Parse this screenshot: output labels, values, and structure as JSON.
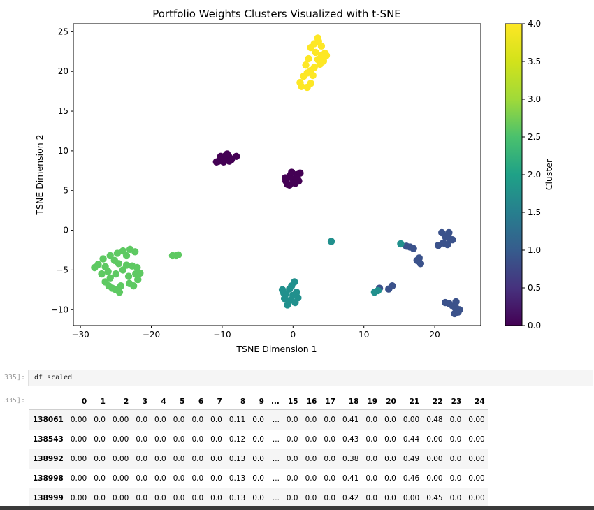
{
  "chart_data": {
    "type": "scatter",
    "title": "Portfolio Weights Clusters Visualized with t-SNE",
    "xlabel": "TSNE Dimension 1",
    "ylabel": "TSNE Dimension 2",
    "xlim": [
      -31,
      26.5
    ],
    "ylim": [
      -12,
      26
    ],
    "xticks": [
      -30,
      -20,
      -10,
      0,
      10,
      20
    ],
    "yticks": [
      -10,
      -5,
      0,
      5,
      10,
      15,
      20,
      25
    ],
    "grid": false,
    "colorbar": {
      "label": "Cluster",
      "range": [
        0,
        4
      ],
      "ticks": [
        "0.0",
        "0.5",
        "1.0",
        "1.5",
        "2.0",
        "2.5",
        "3.0",
        "3.5",
        "4.0"
      ],
      "colormap": "viridis"
    },
    "series": [
      {
        "cluster": 0,
        "color": "#440154",
        "points": [
          [
            -10.5,
            8.7
          ],
          [
            -10,
            9
          ],
          [
            -9.5,
            9.4
          ],
          [
            -9.8,
            8.6
          ],
          [
            -9,
            9.2
          ],
          [
            -8.7,
            8.9
          ],
          [
            -9.3,
            9.6
          ],
          [
            -10.2,
            9.3
          ],
          [
            -8,
            9.3
          ],
          [
            -10.8,
            8.6
          ],
          [
            -9.6,
            8.9
          ],
          [
            -9,
            8.7
          ],
          [
            -1,
            6.2
          ],
          [
            -0.5,
            6.8
          ],
          [
            0,
            6.4
          ],
          [
            0.5,
            7
          ],
          [
            1,
            7.2
          ],
          [
            0.3,
            5.9
          ],
          [
            -0.8,
            5.8
          ],
          [
            -0.2,
            7.3
          ],
          [
            0.8,
            6.2
          ],
          [
            -1.1,
            6.6
          ],
          [
            0.1,
            6
          ],
          [
            0.6,
            6.6
          ],
          [
            -0.5,
            5.7
          ]
        ]
      },
      {
        "cluster": 1,
        "color": "#3b528b",
        "points": [
          [
            16.5,
            -2.1
          ],
          [
            17,
            -2.3
          ],
          [
            16,
            -2
          ],
          [
            17.8,
            -3.5
          ],
          [
            18,
            -4.2
          ],
          [
            17.5,
            -3.8
          ],
          [
            13.5,
            -7.4
          ],
          [
            14,
            -7
          ],
          [
            12.2,
            -7.3
          ],
          [
            21,
            -0.3
          ],
          [
            21.5,
            -0.8
          ],
          [
            22,
            -1
          ],
          [
            21.2,
            -1.6
          ],
          [
            20.5,
            -1.9
          ],
          [
            22.5,
            -1.2
          ],
          [
            22,
            -0.3
          ],
          [
            21.8,
            -1.8
          ],
          [
            22,
            -9.2
          ],
          [
            22.5,
            -9.5
          ],
          [
            23,
            -9.8
          ],
          [
            23.5,
            -10
          ],
          [
            23,
            -9
          ],
          [
            22.8,
            -10.5
          ],
          [
            23.3,
            -10.3
          ],
          [
            21.5,
            -9.1
          ],
          [
            22.8,
            -9.7
          ]
        ]
      },
      {
        "cluster": 2,
        "color": "#21908d",
        "points": [
          [
            5.4,
            -1.4
          ],
          [
            15.2,
            -1.7
          ],
          [
            11.5,
            -7.8
          ],
          [
            12,
            -7.6
          ],
          [
            -1.5,
            -7.5
          ],
          [
            -1,
            -8
          ],
          [
            -0.5,
            -7.4
          ],
          [
            0,
            -8.2
          ],
          [
            0.5,
            -7.8
          ],
          [
            -1.2,
            -8.6
          ],
          [
            0.3,
            -9.1
          ],
          [
            -0.8,
            -9.4
          ],
          [
            0.2,
            -6.5
          ],
          [
            -0.4,
            -8.8
          ],
          [
            0.7,
            -8.5
          ],
          [
            -1.3,
            -7.9
          ],
          [
            -0.2,
            -7
          ]
        ]
      },
      {
        "cluster": 3,
        "color": "#5ec962",
        "points": [
          [
            -28,
            -4.7
          ],
          [
            -27.5,
            -4.3
          ],
          [
            -27,
            -5.5
          ],
          [
            -26.5,
            -6.5
          ],
          [
            -26,
            -7
          ],
          [
            -25.5,
            -7.3
          ],
          [
            -25,
            -7.5
          ],
          [
            -24.5,
            -7.8
          ],
          [
            -26.8,
            -3.6
          ],
          [
            -25.8,
            -3.2
          ],
          [
            -24.8,
            -2.9
          ],
          [
            -24,
            -2.6
          ],
          [
            -23,
            -2.4
          ],
          [
            -22.3,
            -2.7
          ],
          [
            -23.5,
            -3.2
          ],
          [
            -24.6,
            -4.2
          ],
          [
            -25,
            -5.5
          ],
          [
            -25.8,
            -6
          ],
          [
            -26.5,
            -4.6
          ],
          [
            -22.7,
            -4.5
          ],
          [
            -22.2,
            -5.5
          ],
          [
            -21.9,
            -6.2
          ],
          [
            -22.5,
            -7
          ],
          [
            -23.1,
            -6.7
          ],
          [
            -21.6,
            -5.4
          ],
          [
            -22,
            -4.7
          ],
          [
            -23.5,
            -4.4
          ],
          [
            -24,
            -5
          ],
          [
            -23.2,
            -5.8
          ],
          [
            -25.2,
            -3.8
          ],
          [
            -26.1,
            -5.2
          ],
          [
            -24.3,
            -7
          ],
          [
            -16.5,
            -3.2
          ],
          [
            -16.2,
            -3.1
          ],
          [
            -17,
            -3.2
          ]
        ]
      },
      {
        "cluster": 4,
        "color": "#fde725",
        "points": [
          [
            2,
            18
          ],
          [
            2.5,
            18.5
          ],
          [
            1,
            18.6
          ],
          [
            1.5,
            19.4
          ],
          [
            2,
            19.8
          ],
          [
            3,
            20.5
          ],
          [
            3.5,
            21.5
          ],
          [
            4,
            22
          ],
          [
            4.5,
            22.3
          ],
          [
            4,
            23.2
          ],
          [
            3.5,
            24.2
          ],
          [
            3,
            23.5
          ],
          [
            2.5,
            23
          ],
          [
            2.2,
            21.6
          ],
          [
            1.8,
            20.8
          ],
          [
            3.8,
            20.9
          ],
          [
            4.3,
            21.3
          ],
          [
            3.2,
            22.4
          ],
          [
            4.7,
            22
          ],
          [
            2.8,
            19.5
          ],
          [
            1.2,
            18.1
          ],
          [
            2.5,
            20.1
          ],
          [
            3.6,
            23.8
          ],
          [
            4.4,
            21.8
          ]
        ]
      }
    ]
  },
  "cell": {
    "in_prompt": "335]:",
    "code": "df_scaled",
    "out_prompt": "335]:"
  },
  "table": {
    "columns": [
      "0",
      "1",
      "2",
      "3",
      "4",
      "5",
      "6",
      "7",
      "8",
      "9",
      "...",
      "15",
      "16",
      "17",
      "18",
      "19",
      "20",
      "21",
      "22",
      "23",
      "24"
    ],
    "rows": [
      {
        "index": "138061",
        "values": [
          "0.00",
          "0.0",
          "0.00",
          "0.0",
          "0.0",
          "0.0",
          "0.0",
          "0.0",
          "0.11",
          "0.0",
          "...",
          "0.0",
          "0.0",
          "0.0",
          "0.41",
          "0.0",
          "0.0",
          "0.00",
          "0.48",
          "0.0",
          "0.00"
        ]
      },
      {
        "index": "138543",
        "values": [
          "0.00",
          "0.0",
          "0.00",
          "0.0",
          "0.0",
          "0.0",
          "0.0",
          "0.0",
          "0.12",
          "0.0",
          "...",
          "0.0",
          "0.0",
          "0.0",
          "0.43",
          "0.0",
          "0.0",
          "0.44",
          "0.00",
          "0.0",
          "0.00"
        ]
      },
      {
        "index": "138992",
        "values": [
          "0.00",
          "0.0",
          "0.00",
          "0.0",
          "0.0",
          "0.0",
          "0.0",
          "0.0",
          "0.13",
          "0.0",
          "...",
          "0.0",
          "0.0",
          "0.0",
          "0.38",
          "0.0",
          "0.0",
          "0.49",
          "0.00",
          "0.0",
          "0.00"
        ]
      },
      {
        "index": "138998",
        "values": [
          "0.00",
          "0.0",
          "0.00",
          "0.0",
          "0.0",
          "0.0",
          "0.0",
          "0.0",
          "0.13",
          "0.0",
          "...",
          "0.0",
          "0.0",
          "0.0",
          "0.41",
          "0.0",
          "0.0",
          "0.46",
          "0.00",
          "0.0",
          "0.00"
        ]
      },
      {
        "index": "138999",
        "values": [
          "0.00",
          "0.0",
          "0.00",
          "0.0",
          "0.0",
          "0.0",
          "0.0",
          "0.0",
          "0.13",
          "0.0",
          "...",
          "0.0",
          "0.0",
          "0.0",
          "0.42",
          "0.0",
          "0.0",
          "0.00",
          "0.45",
          "0.0",
          "0.00"
        ]
      }
    ]
  }
}
